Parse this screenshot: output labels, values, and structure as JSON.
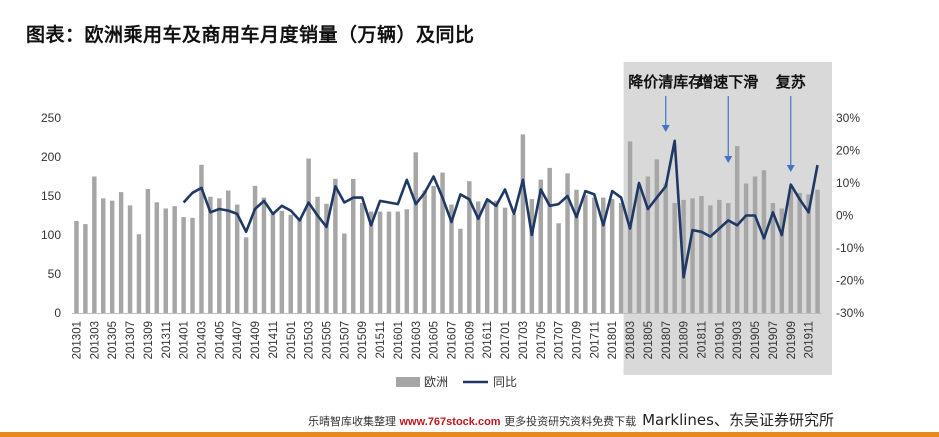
{
  "title": "图表：欧洲乘用车及商用车月度销量（万辆）及同比",
  "footer": {
    "prefix": "乐晴智库收集整理",
    "url": "www.767stock.com",
    "suffix": "更多投资研究资料免费下载",
    "source": "Marklines、东吴证券研究所"
  },
  "chart_data": {
    "type": "bar+line",
    "categories": [
      "201301",
      "201302",
      "201303",
      "201304",
      "201305",
      "201306",
      "201307",
      "201308",
      "201309",
      "201310",
      "201311",
      "201312",
      "201401",
      "201402",
      "201403",
      "201404",
      "201405",
      "201406",
      "201407",
      "201408",
      "201409",
      "201410",
      "201411",
      "201412",
      "201501",
      "201502",
      "201503",
      "201504",
      "201505",
      "201506",
      "201507",
      "201508",
      "201509",
      "201510",
      "201511",
      "201512",
      "201601",
      "201602",
      "201603",
      "201604",
      "201605",
      "201606",
      "201607",
      "201608",
      "201609",
      "201610",
      "201611",
      "201612",
      "201701",
      "201702",
      "201703",
      "201704",
      "201705",
      "201706",
      "201707",
      "201708",
      "201709",
      "201710",
      "201711",
      "201712",
      "201801",
      "201802",
      "201803",
      "201804",
      "201805",
      "201806",
      "201807",
      "201808",
      "201809",
      "201810",
      "201811",
      "201812",
      "201901",
      "201902",
      "201903",
      "201904",
      "201905",
      "201906",
      "201907",
      "201908",
      "201909",
      "201910",
      "201911",
      "201912"
    ],
    "tick_labels": [
      "201301",
      "201303",
      "201305",
      "201307",
      "201309",
      "201311",
      "201401",
      "201403",
      "201405",
      "201407",
      "201409",
      "201411",
      "201501",
      "201503",
      "201505",
      "201507",
      "201509",
      "201511",
      "201601",
      "201603",
      "201605",
      "201607",
      "201609",
      "201611",
      "201701",
      "201703",
      "201705",
      "201707",
      "201709",
      "201711",
      "201801",
      "201803",
      "201805",
      "201807",
      "201809",
      "201811",
      "201901",
      "201903",
      "201905",
      "201907",
      "201909",
      "201911"
    ],
    "series": [
      {
        "name": "欧洲",
        "type": "bar",
        "axis": "left",
        "color": "#a6a6a6",
        "values": [
          118,
          114,
          175,
          147,
          144,
          155,
          138,
          101,
          159,
          142,
          134,
          137,
          123,
          122,
          190,
          149,
          147,
          157,
          139,
          97,
          163,
          148,
          129,
          131,
          126,
          122,
          198,
          149,
          140,
          172,
          102,
          172,
          141,
          130,
          130,
          130,
          130,
          133,
          206,
          157,
          163,
          180,
          139,
          108,
          169,
          143,
          144,
          144,
          135,
          126,
          229,
          146,
          171,
          186,
          115,
          179,
          158,
          151,
          148,
          148,
          146,
          141,
          220,
          165,
          175,
          197,
          166,
          141,
          145,
          147,
          150,
          138,
          145,
          141,
          214,
          166,
          175,
          183,
          141,
          134,
          158,
          154,
          152,
          158
        ]
      },
      {
        "name": "同比",
        "type": "line",
        "axis": "right",
        "color": "#1f3864",
        "values": [
          null,
          null,
          null,
          null,
          null,
          null,
          null,
          null,
          null,
          null,
          null,
          null,
          4,
          7,
          8.5,
          1,
          2,
          1.5,
          0.5,
          -5,
          2,
          4.5,
          0.5,
          3,
          1.5,
          -1.5,
          4,
          0,
          -3.5,
          9,
          4,
          5.5,
          5.5,
          -3,
          4.5,
          4,
          3.5,
          11,
          3.5,
          7,
          12,
          5.5,
          -2,
          6.5,
          5,
          -1,
          5,
          3,
          8,
          0.5,
          11,
          -6,
          8,
          3,
          3.5,
          6,
          -0.5,
          7.5,
          6.5,
          -3,
          7.5,
          5.5,
          -4,
          10,
          2,
          5.5,
          9,
          23,
          -19,
          -4.5,
          -5,
          -6.5,
          -4,
          -1.5,
          -3,
          0,
          0,
          -7,
          1,
          -6,
          9.5,
          5,
          1,
          15.5
        ]
      }
    ],
    "y_left": {
      "min": 0,
      "max": 250,
      "ticks": [
        0,
        50,
        100,
        150,
        200,
        250
      ]
    },
    "y_right": {
      "min": -30,
      "max": 30,
      "ticks": [
        "-30%",
        "-20%",
        "-10%",
        "0%",
        "10%",
        "20%",
        "30%"
      ]
    },
    "shaded_region": {
      "from": "201803",
      "to": "201912",
      "color": "#d9d9d9"
    },
    "annotations": [
      {
        "text": "降价清库存",
        "category": "201807"
      },
      {
        "text": "增速下滑",
        "category": "201902"
      },
      {
        "text": "复苏",
        "category": "201909"
      }
    ],
    "legend": {
      "position": "bottom",
      "entries": [
        "欧洲",
        "同比"
      ]
    }
  }
}
